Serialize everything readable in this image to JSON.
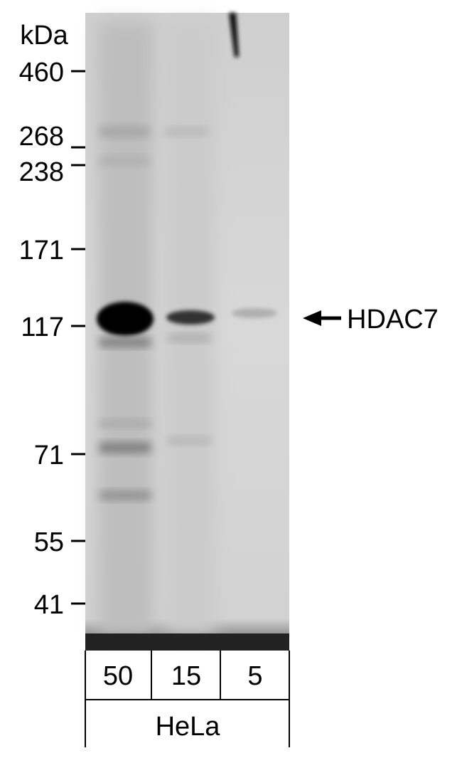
{
  "unit_label": "kDa",
  "markers": [
    "460",
    "268",
    "238",
    "171",
    "117",
    "71",
    "55",
    "41"
  ],
  "target": "HDAC7",
  "lanes": [
    "50",
    "15",
    "5"
  ],
  "sample": "HeLa"
}
